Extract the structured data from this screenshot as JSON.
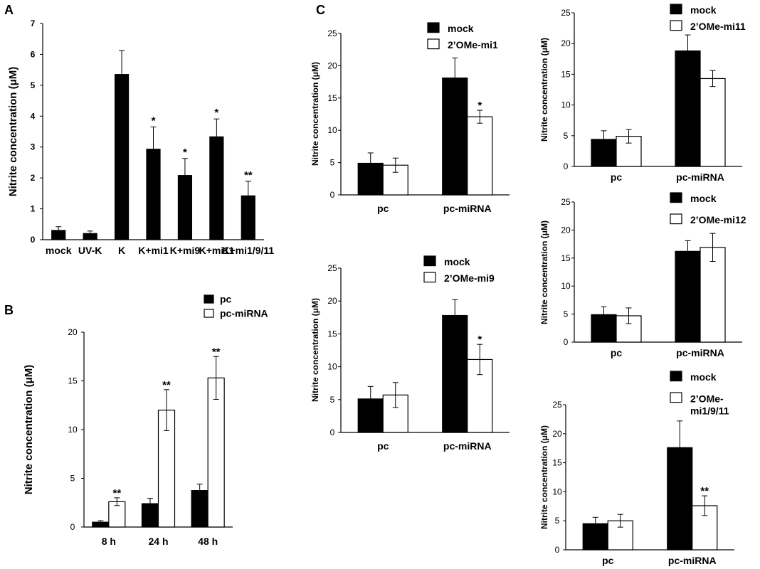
{
  "figure": {
    "panel_labels": [
      "A",
      "B",
      "C"
    ]
  },
  "chart_data": [
    {
      "panel": "A",
      "type": "bar",
      "ylabel": "Nitrite concentration (μM)",
      "ylim": [
        0,
        7
      ],
      "yticks": [
        0,
        1,
        2,
        3,
        4,
        5,
        6,
        7
      ],
      "categories": [
        "mock",
        "UV-K",
        "K",
        "K+mi1",
        "K+mi9",
        "K+mi11",
        "K+mi1/9/11"
      ],
      "series": [
        {
          "fill": "#000000",
          "values": [
            0.3,
            0.2,
            5.35,
            2.93,
            2.08,
            3.33,
            1.42
          ],
          "errors": [
            0.12,
            0.08,
            0.77,
            0.72,
            0.55,
            0.58,
            0.47
          ],
          "annotations": [
            "",
            "",
            "",
            "*",
            "*",
            "*",
            "**"
          ]
        }
      ]
    },
    {
      "panel": "B",
      "type": "bar",
      "ylabel": "Nitrite concentration (μM)",
      "ylim": [
        0,
        20
      ],
      "yticks": [
        0,
        5,
        10,
        15,
        20
      ],
      "categories": [
        "8 h",
        "24 h",
        "48 h"
      ],
      "legend": "top-right",
      "series": [
        {
          "name": "pc",
          "fill": "#000000",
          "values": [
            0.5,
            2.4,
            3.75
          ],
          "errors": [
            0.15,
            0.55,
            0.65
          ],
          "annotations": [
            "",
            "",
            ""
          ]
        },
        {
          "name": "pc-miRNA",
          "fill": "#ffffff",
          "values": [
            2.6,
            12.0,
            15.3
          ],
          "errors": [
            0.4,
            2.1,
            2.2
          ],
          "annotations": [
            "**",
            "**",
            "**"
          ]
        }
      ]
    },
    {
      "panel": "C",
      "type": "bar",
      "ylabel": "Nitrite concentration (μM)",
      "ylim": [
        0,
        25
      ],
      "yticks": [
        0,
        5,
        10,
        15,
        20,
        25
      ],
      "categories": [
        "pc",
        "pc-miRNA"
      ],
      "legend": "top",
      "series": [
        {
          "name": "mock",
          "fill": "#000000",
          "values": [
            4.9,
            18.1
          ],
          "errors": [
            1.6,
            3.1
          ],
          "annotations": [
            "",
            ""
          ]
        },
        {
          "name": "2’OMe-mi1",
          "fill": "#ffffff",
          "values": [
            4.6,
            12.1
          ],
          "errors": [
            1.1,
            1.0
          ],
          "annotations": [
            "",
            "*"
          ]
        }
      ]
    },
    {
      "type": "bar",
      "ylabel": "Nitrite concentration (μM)",
      "ylim": [
        0,
        25
      ],
      "yticks": [
        0,
        5,
        10,
        15,
        20,
        25
      ],
      "categories": [
        "pc",
        "pc-miRNA"
      ],
      "legend": "top",
      "series": [
        {
          "name": "mock",
          "fill": "#000000",
          "values": [
            5.1,
            17.8
          ],
          "errors": [
            1.9,
            2.4
          ],
          "annotations": [
            "",
            ""
          ]
        },
        {
          "name": "2’OMe-mi9",
          "fill": "#ffffff",
          "values": [
            5.7,
            11.1
          ],
          "errors": [
            1.9,
            2.3
          ],
          "annotations": [
            "",
            "*"
          ]
        }
      ]
    },
    {
      "type": "bar",
      "ylabel": "Nitrite concentration (μM)",
      "ylim": [
        0,
        25
      ],
      "yticks": [
        0,
        5,
        10,
        15,
        20,
        25
      ],
      "categories": [
        "pc",
        "pc-miRNA"
      ],
      "legend": "top",
      "series": [
        {
          "name": "mock",
          "fill": "#000000",
          "values": [
            4.4,
            18.8
          ],
          "errors": [
            1.4,
            2.6
          ],
          "annotations": [
            "",
            ""
          ]
        },
        {
          "name": "2’OMe-mi11",
          "fill": "#ffffff",
          "values": [
            4.9,
            14.3
          ],
          "errors": [
            1.1,
            1.3
          ],
          "annotations": [
            "",
            ""
          ]
        }
      ]
    },
    {
      "type": "bar",
      "ylabel": "Nitrite concentration (μM)",
      "ylim": [
        0,
        25
      ],
      "yticks": [
        0,
        5,
        10,
        15,
        20,
        25
      ],
      "categories": [
        "pc",
        "pc-miRNA"
      ],
      "legend": "top",
      "series": [
        {
          "name": "mock",
          "fill": "#000000",
          "values": [
            4.9,
            16.2
          ],
          "errors": [
            1.4,
            1.9
          ],
          "annotations": [
            "",
            ""
          ]
        },
        {
          "name": "2’OMe-mi12",
          "fill": "#ffffff",
          "values": [
            4.7,
            16.9
          ],
          "errors": [
            1.4,
            2.5
          ],
          "annotations": [
            "",
            ""
          ]
        }
      ]
    },
    {
      "type": "bar",
      "ylabel": "Nitrite concentration (μM)",
      "ylim": [
        0,
        25
      ],
      "yticks": [
        0,
        5,
        10,
        15,
        20,
        25
      ],
      "categories": [
        "pc",
        "pc-miRNA"
      ],
      "legend": "top",
      "series": [
        {
          "name": "mock",
          "fill": "#000000",
          "values": [
            4.5,
            17.6
          ],
          "errors": [
            1.1,
            4.6
          ],
          "annotations": [
            "",
            ""
          ]
        },
        {
          "name": "2’OMe-mi1/9/11",
          "name_lines": [
            "2’OMe-",
            "mi1/9/11"
          ],
          "fill": "#ffffff",
          "values": [
            5.0,
            7.6
          ],
          "errors": [
            1.1,
            1.7
          ],
          "annotations": [
            "",
            "**"
          ]
        }
      ]
    }
  ]
}
